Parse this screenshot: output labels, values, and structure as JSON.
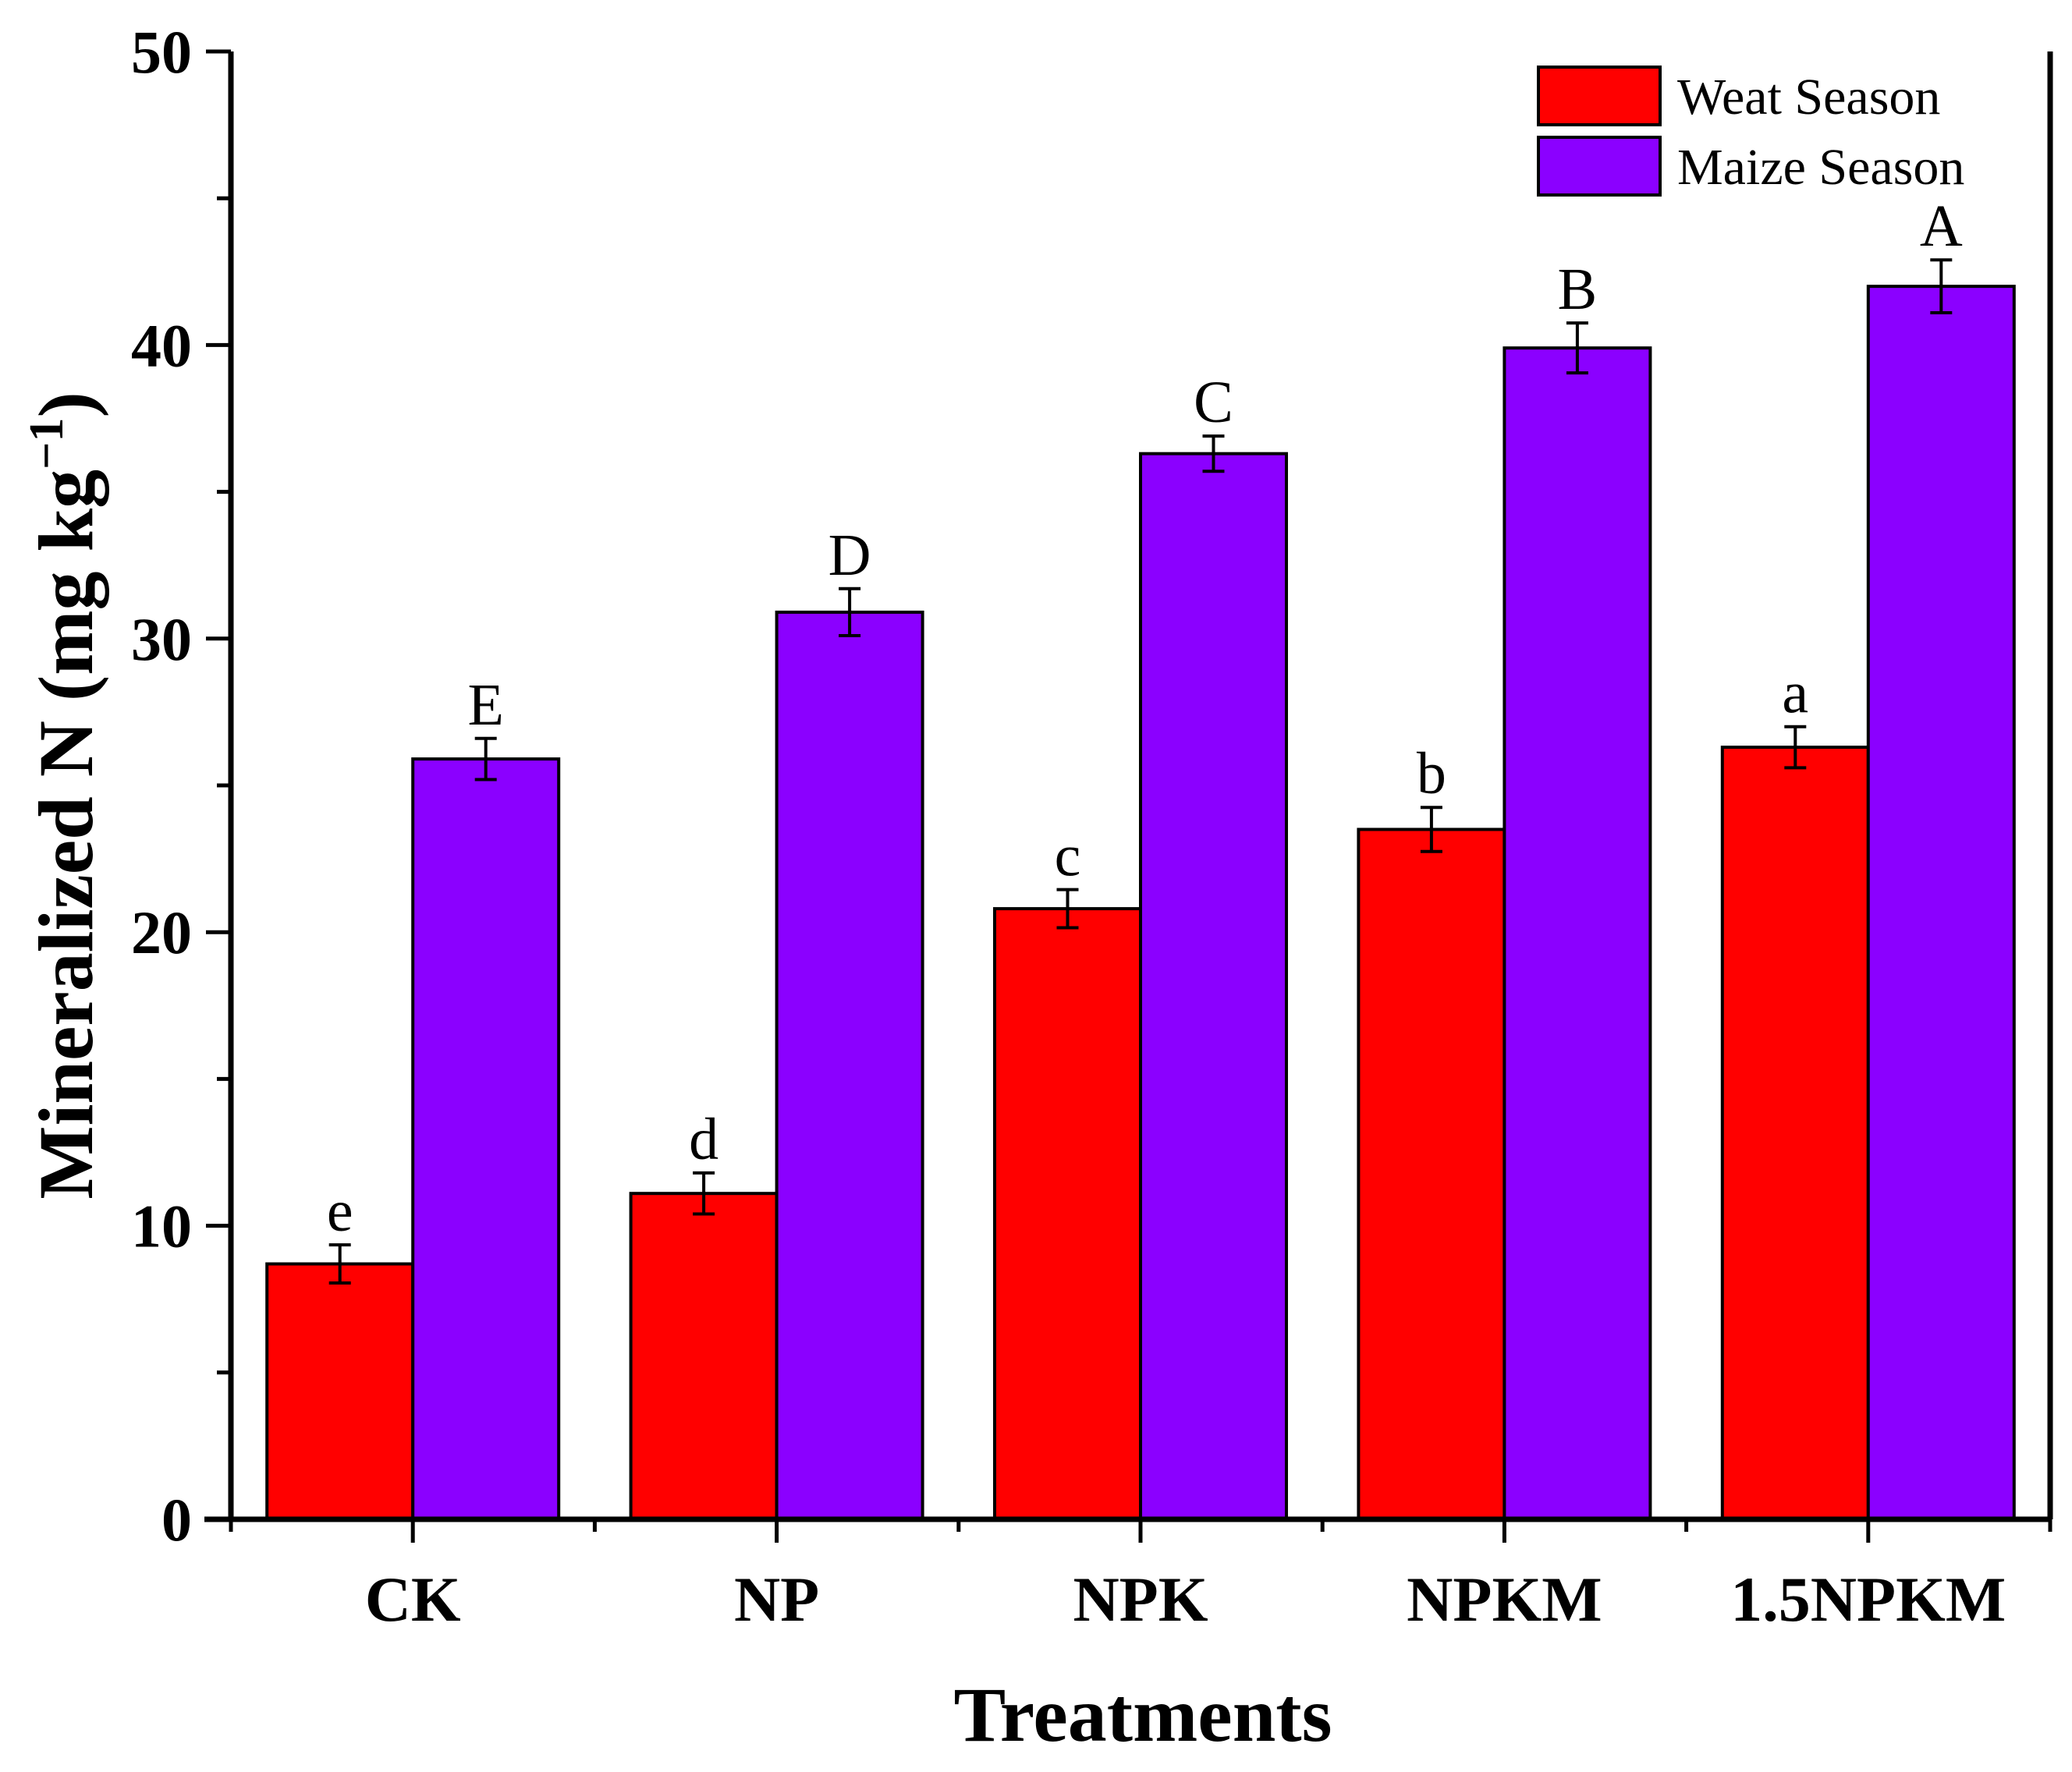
{
  "chart_data": {
    "type": "bar",
    "title": "",
    "xlabel": "Treatments",
    "ylabel": "Mineralized N (mg kg",
    "ylabel_superscript": "−1",
    "ylabel_close": ")",
    "ylim": [
      0,
      50
    ],
    "yticks": [
      0,
      10,
      20,
      30,
      40,
      50
    ],
    "categories": [
      "CK",
      "NP",
      "NPK",
      "NPKM",
      "1.5NPKM"
    ],
    "legend_position": "top-right",
    "series": [
      {
        "name": "Weat Season",
        "color": "#ff0000",
        "values": [
          8.7,
          11.1,
          20.8,
          23.5,
          26.3
        ],
        "errors": [
          0.65,
          0.7,
          0.65,
          0.75,
          0.7
        ],
        "labels": [
          "e",
          "d",
          "c",
          "b",
          "a"
        ]
      },
      {
        "name": "Maize Season",
        "color": "#8b00ff",
        "values": [
          25.9,
          30.9,
          36.3,
          39.9,
          42.0
        ],
        "errors": [
          0.7,
          0.8,
          0.6,
          0.85,
          0.9
        ],
        "labels": [
          "E",
          "D",
          "C",
          "B",
          "A"
        ]
      }
    ]
  }
}
